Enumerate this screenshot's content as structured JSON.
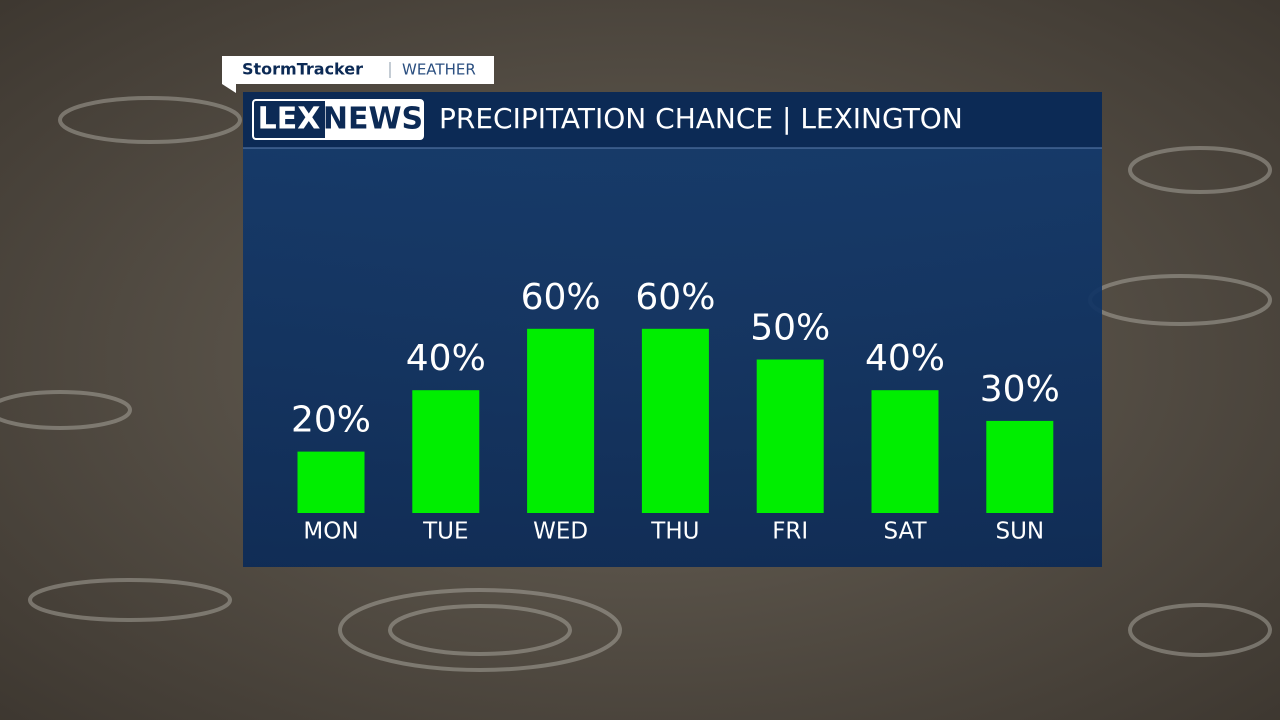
{
  "brand": {
    "tracker": "StormTracker",
    "section": "WEATHER",
    "logo_left": "LEX",
    "logo_right": "NEWS"
  },
  "chart_data": {
    "type": "bar",
    "title": "PRECIPITATION CHANCE | LEXINGTON",
    "categories": [
      "MON",
      "TUE",
      "WED",
      "THU",
      "FRI",
      "SAT",
      "SUN"
    ],
    "values": [
      20,
      40,
      60,
      60,
      50,
      40,
      30
    ],
    "value_labels": [
      "20%",
      "40%",
      "60%",
      "60%",
      "50%",
      "40%",
      "30%"
    ],
    "color": "#00ee00"
  }
}
